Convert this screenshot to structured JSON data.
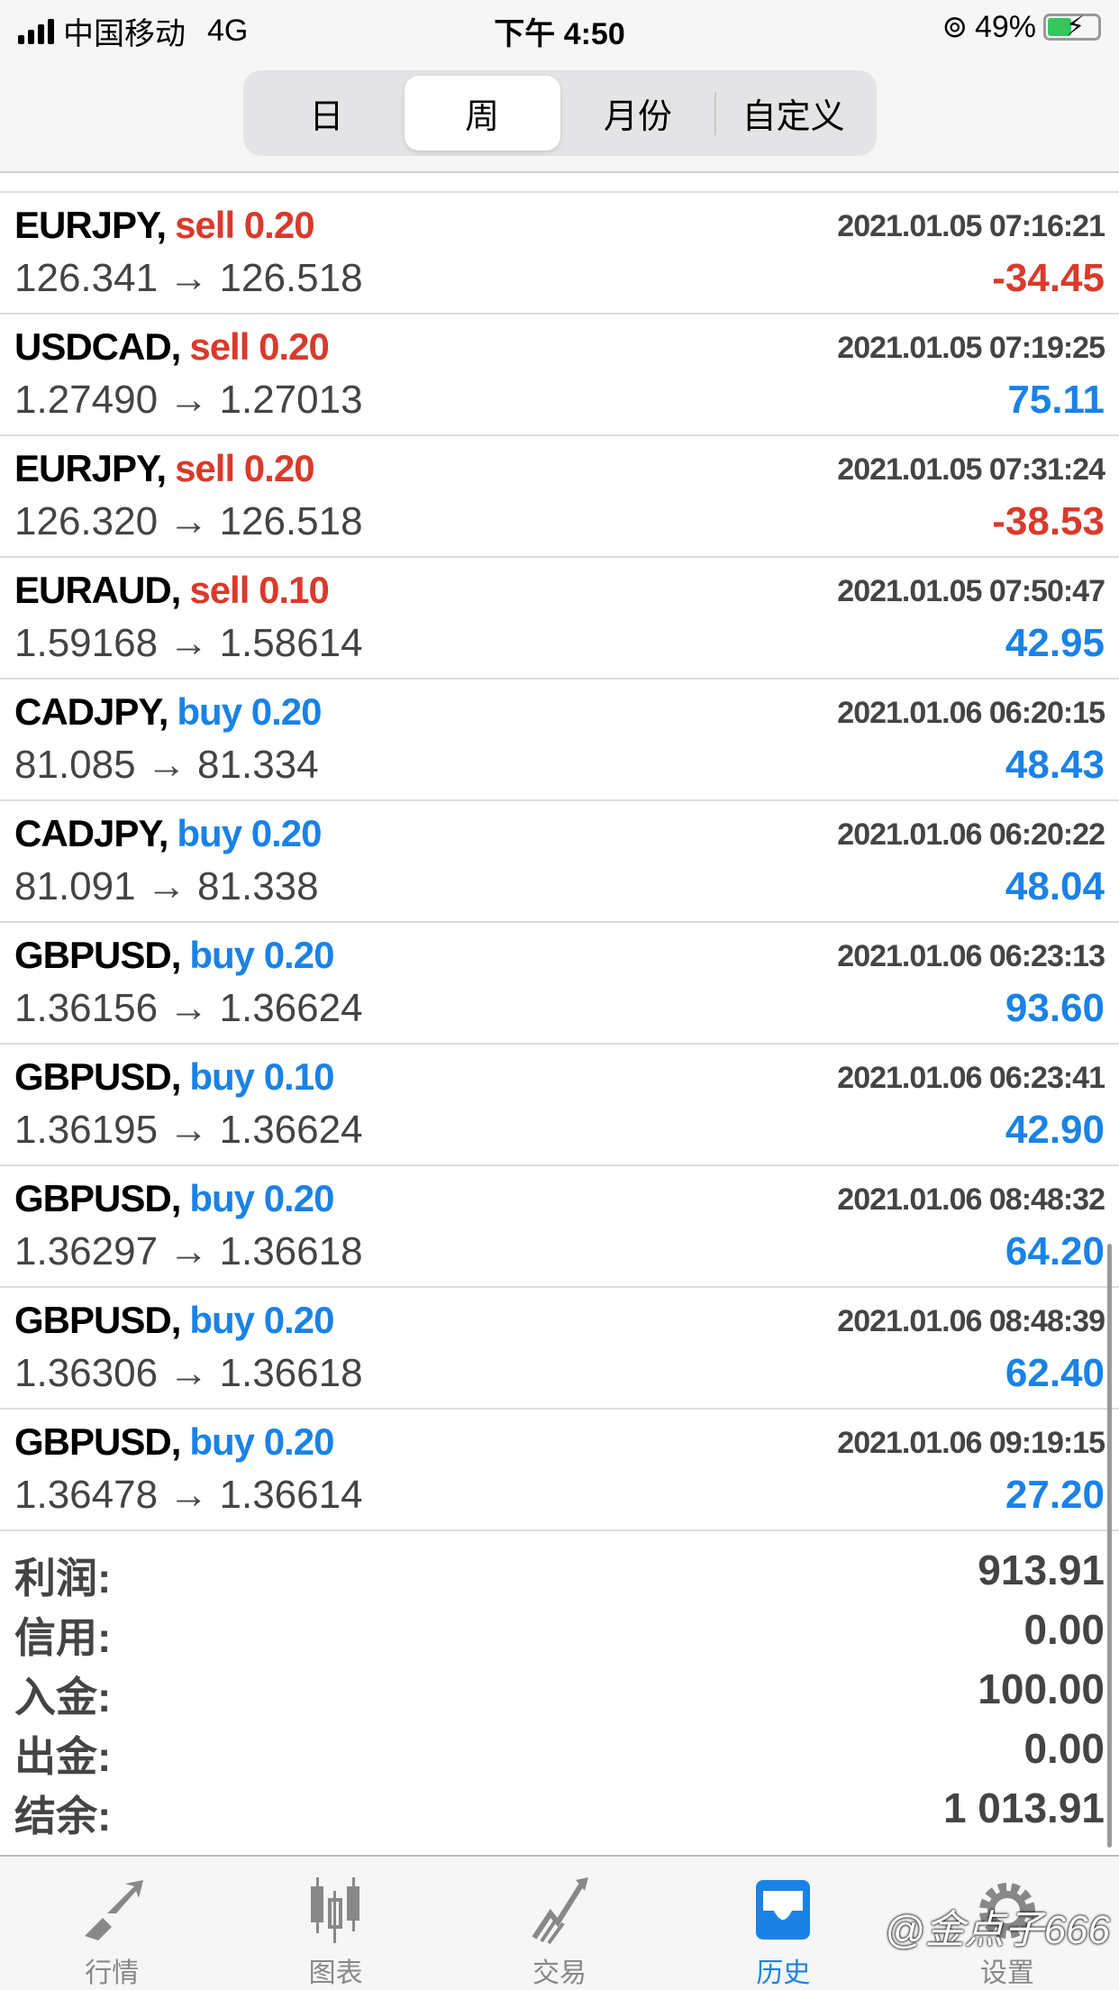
{
  "status": {
    "carrier": "中国移动",
    "network": "4G",
    "time": "下午 4:50",
    "battery": "49%",
    "battery_level": 0.49
  },
  "segments": [
    {
      "label": "日"
    },
    {
      "label": "周",
      "active": true
    },
    {
      "label": "月份"
    },
    {
      "label": "自定义"
    }
  ],
  "colors": {
    "sell": "#d93a2b",
    "buy": "#1a82e6",
    "accent": "#1a82e6"
  },
  "trades": [
    {
      "symbol": "EURJPY,",
      "type": "sell 0.20",
      "side": "sell",
      "date": "2021.01.05 07:16:21",
      "price": "126.341 → 126.518",
      "profit": "-34.45"
    },
    {
      "symbol": "USDCAD,",
      "type": "sell 0.20",
      "side": "sell",
      "date": "2021.01.05 07:19:25",
      "price": "1.27490 → 1.27013",
      "profit": "75.11"
    },
    {
      "symbol": "EURJPY,",
      "type": "sell 0.20",
      "side": "sell",
      "date": "2021.01.05 07:31:24",
      "price": "126.320 → 126.518",
      "profit": "-38.53"
    },
    {
      "symbol": "EURAUD,",
      "type": "sell 0.10",
      "side": "sell",
      "date": "2021.01.05 07:50:47",
      "price": "1.59168 → 1.58614",
      "profit": "42.95"
    },
    {
      "symbol": "CADJPY,",
      "type": "buy 0.20",
      "side": "buy",
      "date": "2021.01.06 06:20:15",
      "price": "81.085 → 81.334",
      "profit": "48.43"
    },
    {
      "symbol": "CADJPY,",
      "type": "buy 0.20",
      "side": "buy",
      "date": "2021.01.06 06:20:22",
      "price": "81.091 → 81.338",
      "profit": "48.04"
    },
    {
      "symbol": "GBPUSD,",
      "type": "buy 0.20",
      "side": "buy",
      "date": "2021.01.06 06:23:13",
      "price": "1.36156 → 1.36624",
      "profit": "93.60"
    },
    {
      "symbol": "GBPUSD,",
      "type": "buy 0.10",
      "side": "buy",
      "date": "2021.01.06 06:23:41",
      "price": "1.36195 → 1.36624",
      "profit": "42.90"
    },
    {
      "symbol": "GBPUSD,",
      "type": "buy 0.20",
      "side": "buy",
      "date": "2021.01.06 08:48:32",
      "price": "1.36297 → 1.36618",
      "profit": "64.20"
    },
    {
      "symbol": "GBPUSD,",
      "type": "buy 0.20",
      "side": "buy",
      "date": "2021.01.06 08:48:39",
      "price": "1.36306 → 1.36618",
      "profit": "62.40"
    },
    {
      "symbol": "GBPUSD,",
      "type": "buy 0.20",
      "side": "buy",
      "date": "2021.01.06 09:19:15",
      "price": "1.36478 → 1.36614",
      "profit": "27.20"
    }
  ],
  "summary": [
    {
      "label": "利润:",
      "value": "913.91"
    },
    {
      "label": "信用:",
      "value": "0.00"
    },
    {
      "label": "入金:",
      "value": "100.00"
    },
    {
      "label": "出金:",
      "value": "0.00"
    },
    {
      "label": "结余:",
      "value": "1 013.91"
    }
  ],
  "tabs": [
    {
      "label": "行情",
      "icon": "quotes-arrows-icon"
    },
    {
      "label": "图表",
      "icon": "candlestick-icon"
    },
    {
      "label": "交易",
      "icon": "trade-trend-icon"
    },
    {
      "label": "历史",
      "icon": "history-inbox-icon",
      "active": true
    },
    {
      "label": "设置",
      "icon": "gear-icon"
    }
  ],
  "watermark": "@金点子666"
}
